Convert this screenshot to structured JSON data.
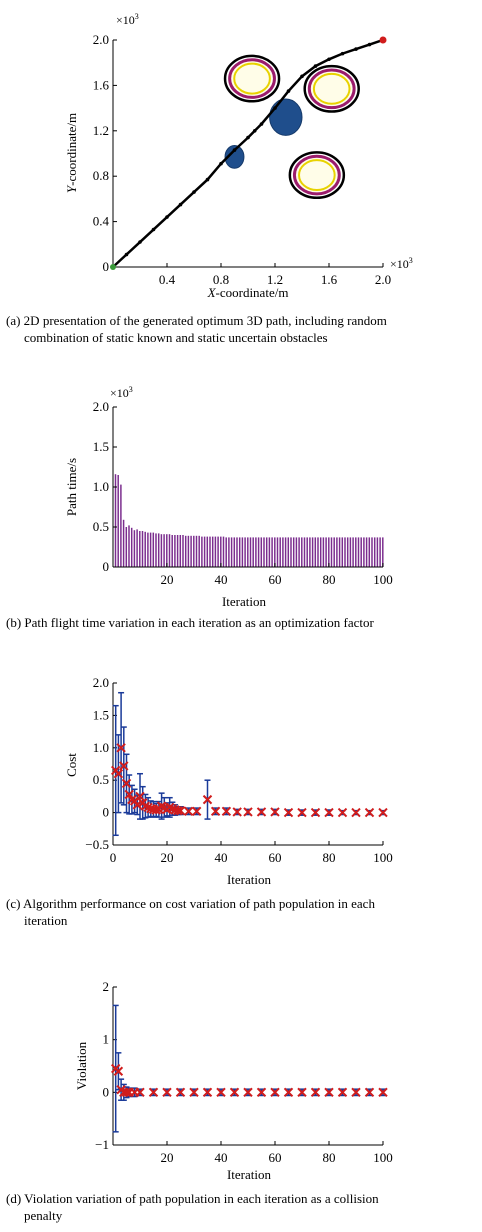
{
  "chart_data": [
    {
      "type": "scatter",
      "panel": "a",
      "caption": "(a) 2D presentation of the generated optimum 3D path, including random combination of static known and static uncertain obstacles",
      "caption_lines": [
        "(a) 2D presentation of the generated optimum 3D path, including random",
        "combination of static known and static uncertain obstacles"
      ],
      "xlabel_italic": "X",
      "xlabel_rest": "-coordinate/m",
      "ylabel_italic": "Y",
      "ylabel_rest": "-coordinate/m",
      "x_multiplier": "×10",
      "y_multiplier": "×10",
      "multiplier_exp": "3",
      "xlim": [
        0,
        2.0
      ],
      "ylim": [
        0,
        2.0
      ],
      "xticks": [
        0.4,
        0.8,
        1.2,
        1.6,
        2.0
      ],
      "yticks": [
        0,
        0.4,
        0.8,
        1.2,
        1.6,
        2.0
      ],
      "ytick_labels": [
        "0",
        "0.4",
        "0.8",
        "1.2",
        "1.6",
        "2.0"
      ],
      "xtick_labels": [
        "0.4",
        "0.8",
        "1.2",
        "1.6",
        "2.0"
      ],
      "path": {
        "color": "#000000",
        "x": [
          0.0,
          0.1,
          0.2,
          0.3,
          0.4,
          0.5,
          0.6,
          0.7,
          0.8,
          0.9,
          1.0,
          1.05,
          1.1,
          1.2,
          1.3,
          1.4,
          1.5,
          1.6,
          1.7,
          1.8,
          1.9,
          2.0
        ],
        "y": [
          0.0,
          0.11,
          0.22,
          0.33,
          0.44,
          0.55,
          0.66,
          0.77,
          0.91,
          1.03,
          1.14,
          1.2,
          1.26,
          1.4,
          1.55,
          1.68,
          1.77,
          1.83,
          1.88,
          1.92,
          1.96,
          2.0
        ]
      },
      "start": {
        "x": 0.0,
        "y": 0.0,
        "color": "#3a9a3a"
      },
      "goal": {
        "x": 2.0,
        "y": 2.0,
        "color": "#d01c1c"
      },
      "known_obstacles": [
        {
          "cx": 1.03,
          "cy": 1.66,
          "r": 0.2
        },
        {
          "cx": 1.62,
          "cy": 1.57,
          "r": 0.2
        },
        {
          "cx": 1.51,
          "cy": 0.81,
          "r": 0.2
        }
      ],
      "uncertain_obstacles": [
        {
          "cx": 1.28,
          "cy": 1.32,
          "rx": 0.12,
          "ry": 0.16
        },
        {
          "cx": 0.9,
          "cy": 0.97,
          "rx": 0.07,
          "ry": 0.1
        }
      ],
      "obstacle_colors": {
        "outer": "#000000",
        "ring": "#9b1c6c",
        "fill": "#fffde8",
        "inner": "#e8d200",
        "uncertain": "#1f4e8c"
      }
    },
    {
      "type": "bar",
      "panel": "b",
      "caption": "(b) Path flight time variation in each iteration as an optimization factor",
      "xlabel": "Iteration",
      "ylabel": "Path time/s",
      "y_multiplier": "×10",
      "multiplier_exp": "3",
      "xlim": [
        0,
        100
      ],
      "ylim": [
        0,
        2.0
      ],
      "xticks": [
        20,
        40,
        60,
        80,
        100
      ],
      "yticks": [
        0,
        0.5,
        1.0,
        1.5,
        2.0
      ],
      "ytick_labels": [
        "0",
        "0.5",
        "1.0",
        "1.5",
        "2.0"
      ],
      "bar_color": "#7b2d8e",
      "values": [
        1.16,
        1.15,
        1.03,
        0.59,
        0.5,
        0.52,
        0.49,
        0.46,
        0.47,
        0.45,
        0.45,
        0.44,
        0.43,
        0.43,
        0.43,
        0.42,
        0.42,
        0.41,
        0.41,
        0.41,
        0.41,
        0.4,
        0.4,
        0.4,
        0.4,
        0.4,
        0.39,
        0.39,
        0.39,
        0.39,
        0.39,
        0.39,
        0.38,
        0.38,
        0.38,
        0.38,
        0.38,
        0.38,
        0.38,
        0.38,
        0.38,
        0.37,
        0.37,
        0.37,
        0.37,
        0.37,
        0.37,
        0.37,
        0.37,
        0.37,
        0.37,
        0.37,
        0.37,
        0.37,
        0.37,
        0.37,
        0.37,
        0.37,
        0.37,
        0.37,
        0.37,
        0.37,
        0.37,
        0.37,
        0.37,
        0.37,
        0.37,
        0.37,
        0.37,
        0.37,
        0.37,
        0.37,
        0.37,
        0.37,
        0.37,
        0.37,
        0.37,
        0.37,
        0.37,
        0.37,
        0.37,
        0.37,
        0.37,
        0.37,
        0.37,
        0.37,
        0.37,
        0.37,
        0.37,
        0.37,
        0.37,
        0.37,
        0.37,
        0.37,
        0.37,
        0.37,
        0.37,
        0.37,
        0.37,
        0.37
      ]
    },
    {
      "type": "scatter",
      "panel": "c",
      "caption": "(c) Algorithm performance on cost variation of path population in each iteration",
      "caption_lines": [
        "(c) Algorithm performance on cost variation of path population in each",
        "iteration"
      ],
      "xlabel": "Iteration",
      "ylabel": "Cost",
      "xlim": [
        0,
        100
      ],
      "ylim": [
        -0.5,
        2.0
      ],
      "xticks": [
        0,
        20,
        40,
        60,
        80,
        100
      ],
      "yticks": [
        -0.5,
        0,
        0.5,
        1.0,
        1.5,
        2.0
      ],
      "ytick_labels": [
        "−0.5",
        "0",
        "0.5",
        "1.0",
        "1.5",
        "2.0"
      ],
      "marker_color": "#d01c1c",
      "error_color": "#1a3a99",
      "x": [
        1,
        2,
        3,
        4,
        5,
        6,
        7,
        8,
        9,
        10,
        11,
        12,
        13,
        14,
        15,
        16,
        17,
        18,
        19,
        20,
        21,
        22,
        23,
        24,
        25,
        28,
        31,
        35,
        38,
        42,
        46,
        50,
        55,
        60,
        65,
        70,
        75,
        80,
        85,
        90,
        95,
        100
      ],
      "y": [
        0.65,
        0.6,
        1.0,
        0.72,
        0.45,
        0.28,
        0.2,
        0.18,
        0.12,
        0.25,
        0.15,
        0.1,
        0.08,
        0.06,
        0.05,
        0.04,
        0.05,
        0.1,
        0.08,
        0.05,
        0.08,
        0.06,
        0.04,
        0.03,
        0.03,
        0.02,
        0.02,
        0.2,
        0.02,
        0.02,
        0.01,
        0.01,
        0.01,
        0.01,
        0.0,
        0.0,
        0.0,
        0.0,
        0.0,
        0.0,
        0.0,
        0.0
      ],
      "err": [
        1.0,
        0.6,
        0.85,
        0.6,
        0.45,
        0.3,
        0.22,
        0.18,
        0.15,
        0.35,
        0.25,
        0.18,
        0.15,
        0.12,
        0.12,
        0.1,
        0.12,
        0.2,
        0.15,
        0.1,
        0.15,
        0.1,
        0.08,
        0.06,
        0.06,
        0.05,
        0.05,
        0.3,
        0.05,
        0.05,
        0.04,
        0.04,
        0.04,
        0.04,
        0.04,
        0.04,
        0.04,
        0.04,
        0.03,
        0.03,
        0.03,
        0.03
      ]
    },
    {
      "type": "scatter",
      "panel": "d",
      "caption": "(d) Violation variation of path population in each iteration as a collision penalty",
      "caption_lines": [
        "(d) Violation variation of path population in each iteration as a collision",
        "penalty"
      ],
      "xlabel": "Iteration",
      "ylabel": "Violation",
      "xlim": [
        0,
        100
      ],
      "ylim": [
        -1,
        2
      ],
      "xticks": [
        20,
        40,
        60,
        80,
        100
      ],
      "yticks": [
        -1,
        0,
        1,
        2
      ],
      "ytick_labels": [
        "−1",
        "0",
        "1",
        "2"
      ],
      "marker_color": "#d01c1c",
      "error_color": "#1a3a99",
      "x": [
        1,
        2,
        3,
        4,
        5,
        6,
        8,
        10,
        15,
        20,
        25,
        30,
        35,
        40,
        45,
        50,
        55,
        60,
        65,
        70,
        75,
        80,
        85,
        90,
        95,
        100
      ],
      "y": [
        0.45,
        0.4,
        0.05,
        0.0,
        0.0,
        0.0,
        0.0,
        0.0,
        0.0,
        0.0,
        0.0,
        0.0,
        0.0,
        0.0,
        0.0,
        0.0,
        0.0,
        0.0,
        0.0,
        0.0,
        0.0,
        0.0,
        0.0,
        0.0,
        0.0,
        0.0
      ],
      "err": [
        1.2,
        0.35,
        0.2,
        0.15,
        0.1,
        0.08,
        0.08,
        0.06,
        0.06,
        0.06,
        0.06,
        0.06,
        0.06,
        0.06,
        0.06,
        0.06,
        0.06,
        0.06,
        0.06,
        0.06,
        0.06,
        0.06,
        0.06,
        0.06,
        0.06,
        0.06
      ]
    }
  ]
}
